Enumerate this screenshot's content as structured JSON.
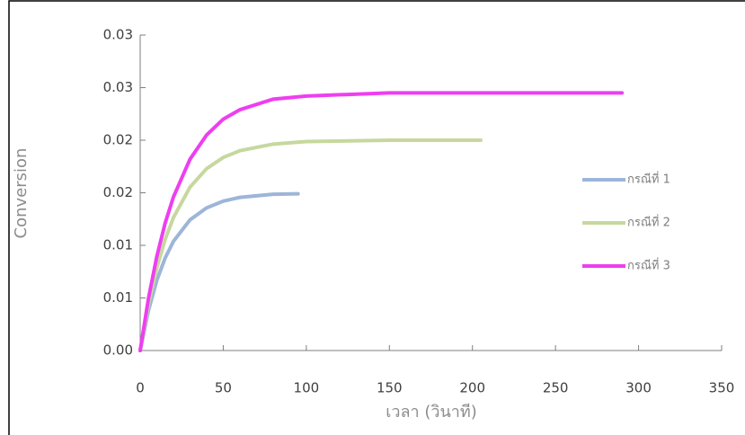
{
  "chart_data": {
    "type": "line",
    "x_label": "เวลา (วินาที)",
    "y_label": "Conversion",
    "xlim": [
      0,
      350
    ],
    "xticks": [
      0,
      50,
      100,
      150,
      200,
      250,
      300,
      350
    ],
    "ylim": [
      0,
      0.03
    ],
    "yticks": [
      {
        "value": 0,
        "label": "0.00"
      },
      {
        "value": 0.005,
        "label": "0.01"
      },
      {
        "value": 0.01,
        "label": "0.01"
      },
      {
        "value": 0.015,
        "label": "0.02"
      },
      {
        "value": 0.02,
        "label": "0.02"
      },
      {
        "value": 0.025,
        "label": "0.03"
      },
      {
        "value": 0.03,
        "label": "0.03"
      }
    ],
    "legend": "right",
    "series": [
      {
        "name": "กรณีที่ 1",
        "color": "#9db5d8",
        "x": [
          0,
          5,
          10,
          15,
          20,
          30,
          40,
          50,
          60,
          80,
          95
        ],
        "values": [
          0,
          0.00382,
          0.00667,
          0.00879,
          0.01038,
          0.01243,
          0.01357,
          0.01421,
          0.01456,
          0.01486,
          0.0149
        ]
      },
      {
        "name": "กรณีที่ 2",
        "color": "#c6d89e",
        "x": [
          0,
          5,
          10,
          15,
          20,
          30,
          40,
          50,
          60,
          80,
          100,
          150,
          205
        ],
        "values": [
          0,
          0.00442,
          0.00787,
          0.01055,
          0.01264,
          0.01554,
          0.0173,
          0.01836,
          0.019,
          0.01963,
          0.01987,
          0.02,
          0.02
        ]
      },
      {
        "name": "กรณีที่ 3",
        "color": "#ee3ef0",
        "x": [
          0,
          5,
          10,
          15,
          20,
          30,
          40,
          50,
          60,
          80,
          100,
          150,
          200,
          250,
          290
        ],
        "values": [
          0,
          0.00497,
          0.00894,
          0.0121,
          0.0146,
          0.0182,
          0.0205,
          0.022,
          0.0229,
          0.0239,
          0.0242,
          0.0245,
          0.0245,
          0.0245,
          0.0245
        ]
      }
    ]
  }
}
